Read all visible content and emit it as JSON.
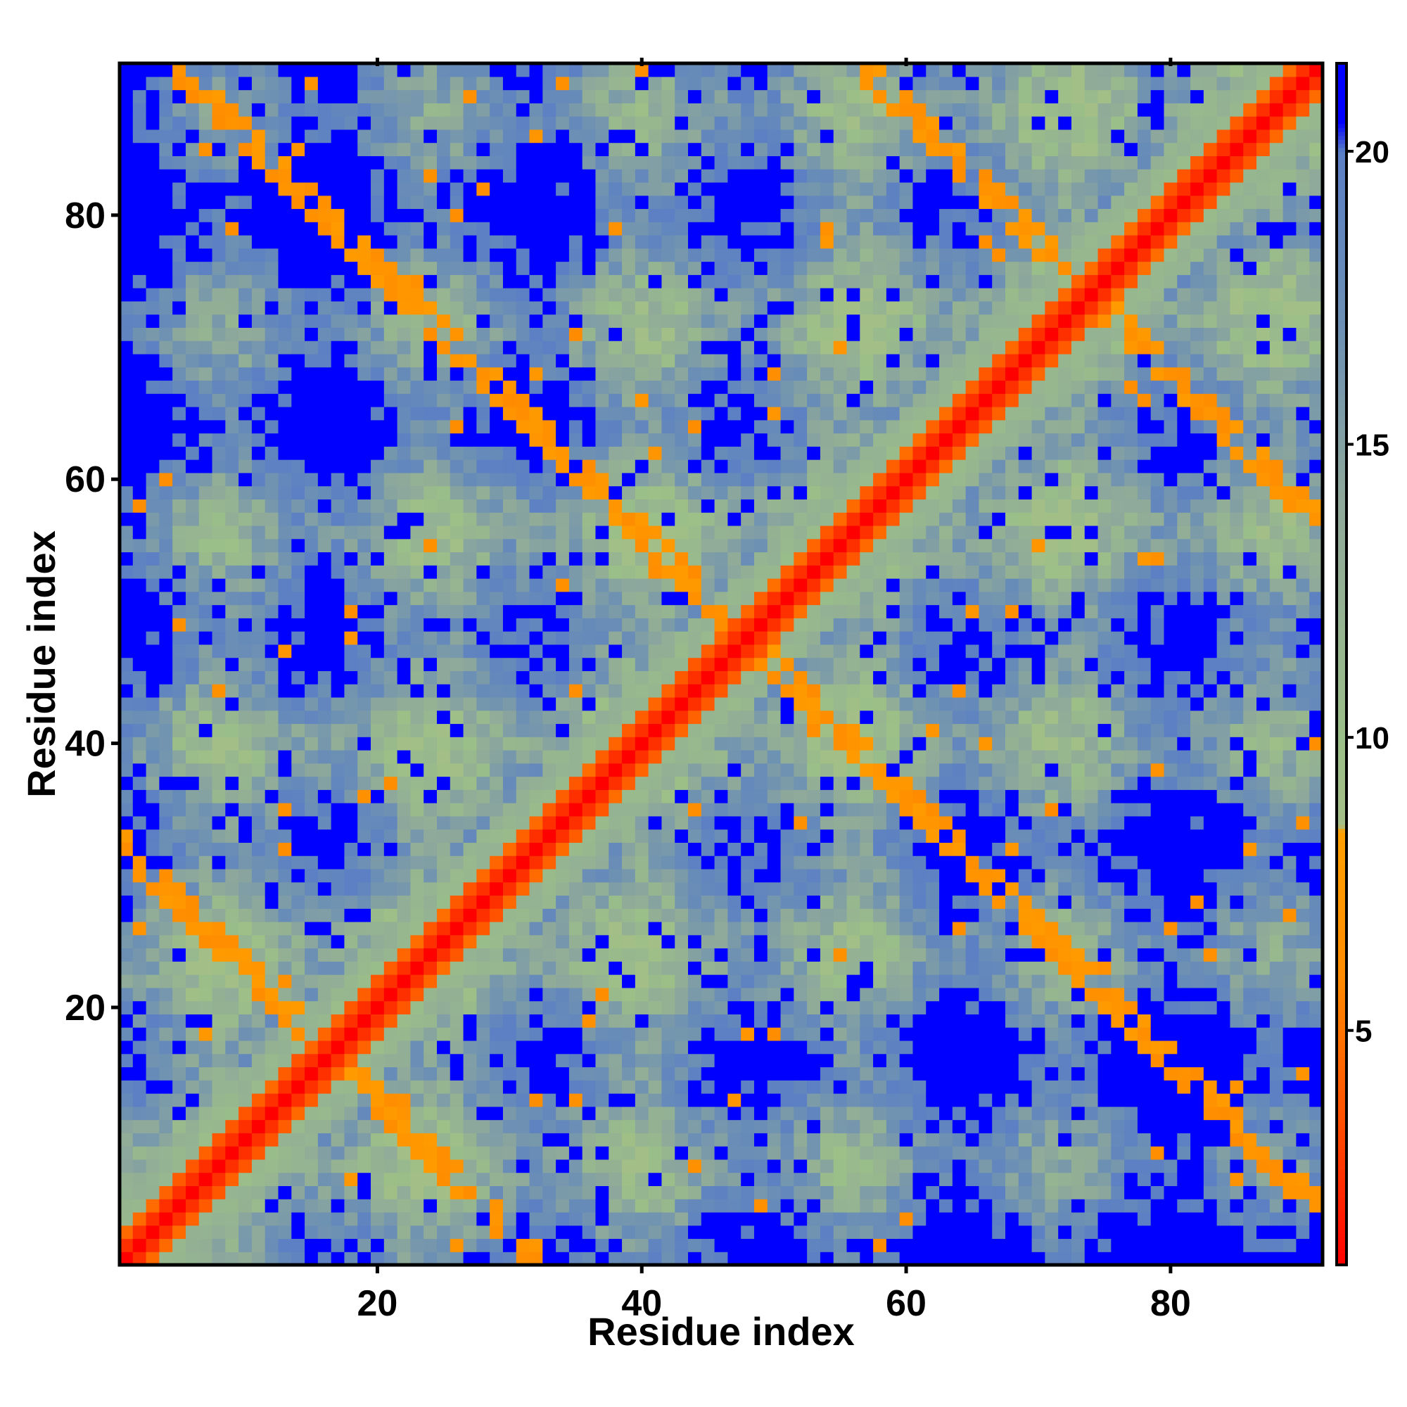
{
  "chart_data": {
    "type": "heatmap",
    "title": "",
    "xlabel": "Residue index",
    "ylabel": "Residue index",
    "n_residues": 91,
    "xlim": [
      0.5,
      91.5
    ],
    "ylim": [
      0.5,
      91.5
    ],
    "x_ticks": [
      20,
      40,
      60,
      80
    ],
    "y_ticks": [
      20,
      40,
      60,
      80
    ],
    "x_tick_labels": [
      "20",
      "40",
      "60",
      "80"
    ],
    "y_tick_labels": [
      "20",
      "40",
      "60",
      "80"
    ],
    "colorbar": {
      "range": [
        1,
        21.5
      ],
      "ticks": [
        5,
        10,
        15,
        20
      ],
      "tick_labels": [
        "5",
        "10",
        "15",
        "20"
      ],
      "stops": [
        {
          "value": 1,
          "color": "#ff0000"
        },
        {
          "value": 3.5,
          "color": "#ff5000"
        },
        {
          "value": 6,
          "color": "#ff8c00"
        },
        {
          "value": 8.4,
          "color": "#ffa000"
        },
        {
          "value": 8.5,
          "color": "#a4bf87"
        },
        {
          "value": 10,
          "color": "#9bbf88"
        },
        {
          "value": 14,
          "color": "#8fa99a"
        },
        {
          "value": 17,
          "color": "#6c90b4"
        },
        {
          "value": 20,
          "color": "#5b7fc4"
        },
        {
          "value": 20.5,
          "color": "#0000ff"
        },
        {
          "value": 21.5,
          "color": "#0000ff"
        }
      ]
    },
    "matrix_description": "Symmetric residue-residue distance map: red main diagonal, orange secondary contact bands, green/gray-blue intermediate distances, blue for distances beyond 20",
    "diagonal_value": 1,
    "contact_bands": [
      {
        "i_start": 1,
        "i_end": 33,
        "sum": 33,
        "value": 6
      },
      {
        "i_start": 17,
        "i_end": 43,
        "sum": 96,
        "value": 6
      },
      {
        "i_start": 40,
        "i_end": 58,
        "sum": 96,
        "value": 6.5
      },
      {
        "i_start": 57,
        "i_end": 91,
        "sum": 148,
        "value": 6
      },
      {
        "i_start": 5,
        "i_end": 30,
        "sum": 96,
        "value": 6
      },
      {
        "i_start": 62,
        "i_end": 88,
        "sum": 96,
        "value": 6.5
      }
    ]
  }
}
